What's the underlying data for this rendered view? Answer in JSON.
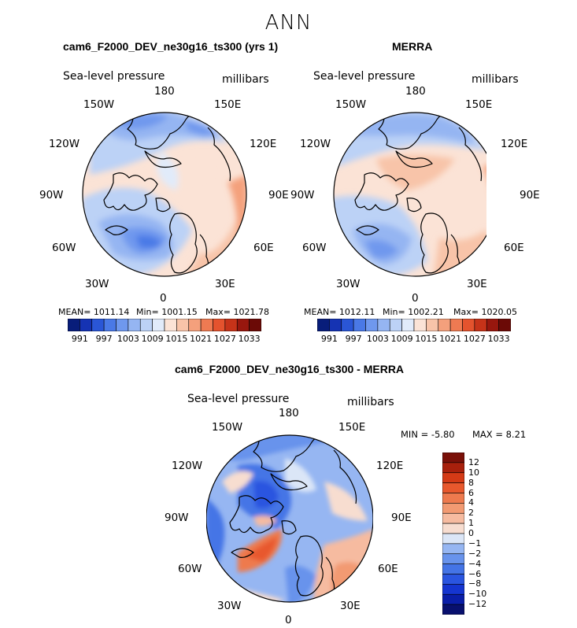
{
  "figure_title": "ANN",
  "chart_data": [
    {
      "type": "heatmap",
      "projection": "polar-stereographic-north",
      "title": "cam6_F2000_DEV_ne30g16_ts300 (yrs 1)",
      "left_label": "Sea-level pressure",
      "right_label": "millibars",
      "lon_labels": [
        "180",
        "150E",
        "120E",
        "90E",
        "60E",
        "30E",
        "0",
        "30W",
        "60W",
        "90W",
        "120W",
        "150W"
      ],
      "stats": {
        "mean": "MEAN= 1011.14",
        "min": "Min= 1001.15",
        "max": "Max= 1021.78"
      },
      "colorbar": {
        "orientation": "horizontal",
        "levels": [
          991,
          994,
          997,
          1000,
          1003,
          1006,
          1009,
          1012,
          1015,
          1018,
          1021,
          1024,
          1027,
          1030,
          1033
        ],
        "tick_labels": [
          "991",
          "997",
          "1003",
          "1009",
          "1015",
          "1021",
          "1027",
          "1033"
        ],
        "colors": [
          "#081d7a",
          "#1533b3",
          "#2a56d6",
          "#4a79e6",
          "#6f98ee",
          "#95b5f2",
          "#bcd2f6",
          "#e1ebfa",
          "#fbe3d6",
          "#f8c4a9",
          "#f4a07c",
          "#ee7a52",
          "#e4532e",
          "#c63319",
          "#98170e",
          "#6b0a06"
        ]
      }
    },
    {
      "type": "heatmap",
      "projection": "polar-stereographic-north",
      "title": "MERRA",
      "left_label": "Sea-level pressure",
      "right_label": "millibars",
      "lon_labels": [
        "180",
        "150E",
        "120E",
        "90E",
        "60E",
        "30E",
        "0",
        "30W",
        "60W",
        "90W",
        "120W",
        "150W"
      ],
      "stats": {
        "mean": "MEAN= 1012.11",
        "min": "Min= 1002.21",
        "max": "Max= 1020.05"
      },
      "colorbar": {
        "orientation": "horizontal",
        "levels": [
          991,
          994,
          997,
          1000,
          1003,
          1006,
          1009,
          1012,
          1015,
          1018,
          1021,
          1024,
          1027,
          1030,
          1033
        ],
        "tick_labels": [
          "991",
          "997",
          "1003",
          "1009",
          "1015",
          "1021",
          "1027",
          "1033"
        ],
        "colors": [
          "#081d7a",
          "#1533b3",
          "#2a56d6",
          "#4a79e6",
          "#6f98ee",
          "#95b5f2",
          "#bcd2f6",
          "#e1ebfa",
          "#fbe3d6",
          "#f8c4a9",
          "#f4a07c",
          "#ee7a52",
          "#e4532e",
          "#c63319",
          "#98170e",
          "#6b0a06"
        ]
      }
    },
    {
      "type": "heatmap",
      "projection": "polar-stereographic-north",
      "title": "cam6_F2000_DEV_ne30g16_ts300 - MERRA",
      "left_label": "Sea-level pressure",
      "right_label": "millibars",
      "lon_labels": [
        "180",
        "150E",
        "120E",
        "90E",
        "60E",
        "30E",
        "0",
        "30W",
        "60W",
        "90W",
        "120W",
        "150W"
      ],
      "stats": {
        "min": "MIN = -5.80",
        "max": "MAX = 8.21"
      },
      "colorbar": {
        "orientation": "vertical",
        "levels": [
          -12,
          -10,
          -8,
          -6,
          -4,
          -2,
          -1,
          0,
          1,
          2,
          4,
          6,
          8,
          10,
          12
        ],
        "tick_labels": [
          "12",
          "10",
          "8",
          "6",
          "4",
          "2",
          "1",
          "0",
          "−1",
          "−2",
          "−4",
          "−6",
          "−8",
          "−10",
          "−12"
        ],
        "colors": [
          "#08106e",
          "#0a1ea8",
          "#1535d0",
          "#2a55e0",
          "#4474e6",
          "#6893ec",
          "#96b6f2",
          "#dbe6f7",
          "#f7ddd0",
          "#f6bba0",
          "#f29a72",
          "#ee7a4e",
          "#e8582d",
          "#d43a16",
          "#a8200c",
          "#7a1008"
        ]
      }
    }
  ]
}
